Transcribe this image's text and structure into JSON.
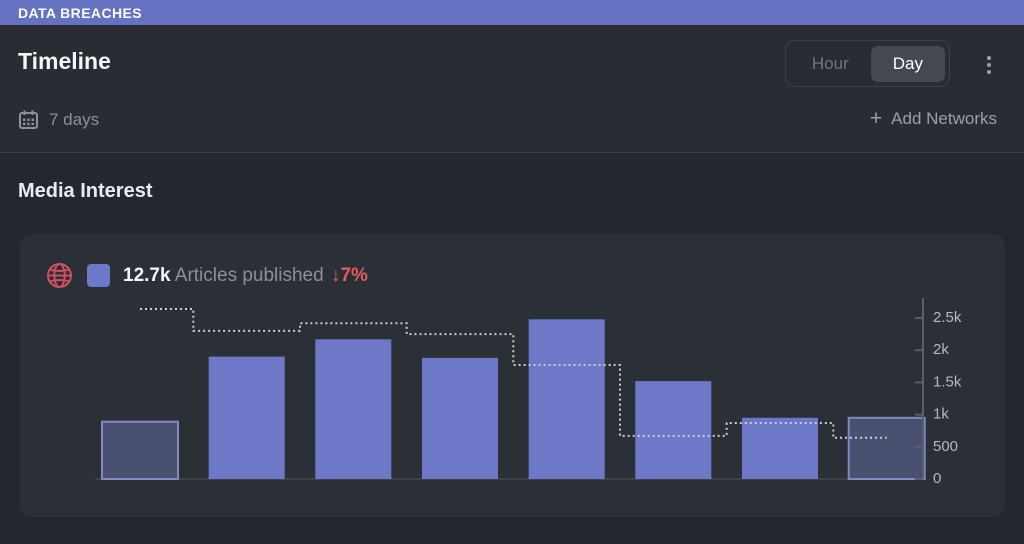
{
  "app_bar": {
    "title": "DATA BREACHES",
    "bg_color": "#6571c1"
  },
  "header": {
    "title": "Timeline",
    "range_label": "7 days",
    "add_icon": "+",
    "add_networks_label": "Add Networks",
    "toggle": {
      "options": [
        {
          "label": "Hour",
          "active": false
        },
        {
          "label": "Day",
          "active": true
        }
      ]
    }
  },
  "section": {
    "title": "Media Interest"
  },
  "legend": {
    "total": "12.7k",
    "label": "Articles published",
    "delta_arrow": "↓",
    "delta": "7%",
    "series_color": "#6d78c8",
    "globe_icon_color": "#d14f60"
  },
  "chart_data": {
    "type": "bar",
    "title": "Media Interest — Articles published, last 7 days",
    "x": [
      1,
      2,
      3,
      4,
      5,
      6,
      7,
      8
    ],
    "categories": [
      "",
      "",
      "",
      "",
      "",
      "",
      "",
      ""
    ],
    "series": [
      {
        "name": "Articles published (current period)",
        "type": "bar",
        "values": [
          890,
          1900,
          2170,
          1880,
          2480,
          1520,
          950,
          950
        ],
        "muted_indices": [
          0,
          7
        ]
      },
      {
        "name": "Previous period (dotted step line)",
        "type": "step-line",
        "values": [
          2640,
          2300,
          2420,
          2250,
          1770,
          670,
          870,
          640
        ]
      }
    ],
    "total": 12700,
    "total_label": "12.7k",
    "delta_label": "↓7%",
    "ylim": [
      0,
      2500
    ],
    "yticks": [
      {
        "value": 0,
        "label": "0"
      },
      {
        "value": 500,
        "label": "500"
      },
      {
        "value": 1000,
        "label": "1k"
      },
      {
        "value": 1500,
        "label": "1.5k"
      },
      {
        "value": 2000,
        "label": "2k"
      },
      {
        "value": 2500,
        "label": "2.5k"
      }
    ],
    "axis_side": "right",
    "grid": false,
    "legend_position": "top-left",
    "colors": {
      "bar_fill": "#6d78c8",
      "bar_muted_fill": "#4a5070",
      "bar_muted_border": "#8089c2",
      "prev_line": "#c9ccd2",
      "axis": "#5b6068",
      "tick_text": "#b4bac2",
      "baseline": "#3d414a"
    }
  }
}
